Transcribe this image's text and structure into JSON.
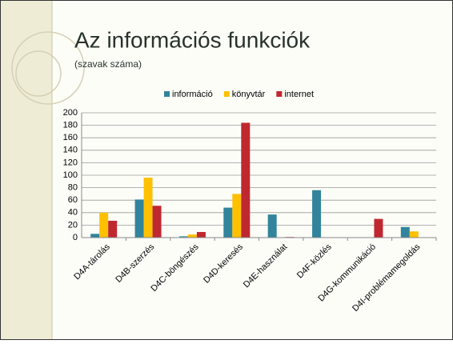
{
  "chart_data": {
    "type": "bar",
    "title": "Az információs funkciók",
    "subtitle": "(szavak száma)",
    "categories": [
      "D4A-tárolás",
      "D4B-szerzés",
      "D4C-böngészés",
      "D4D-keresés",
      "D4E-használat",
      "D4F-közlés",
      "D4G-kommunikáció",
      "D4I-problémamegoldás"
    ],
    "series": [
      {
        "name": "információ",
        "color": "#31849b",
        "values": [
          6,
          61,
          2,
          48,
          37,
          76,
          0,
          17
        ]
      },
      {
        "name": "könyvtár",
        "color": "#ffc000",
        "values": [
          40,
          96,
          5,
          70,
          0,
          0,
          0,
          10
        ]
      },
      {
        "name": "internet",
        "color": "#c0282f",
        "values": [
          27,
          51,
          9,
          184,
          1,
          0,
          30,
          0
        ]
      }
    ],
    "ylim": [
      0,
      200
    ],
    "yticks": [
      0,
      20,
      40,
      60,
      80,
      100,
      120,
      140,
      160,
      180,
      200
    ],
    "grid": true,
    "legend": "top"
  }
}
